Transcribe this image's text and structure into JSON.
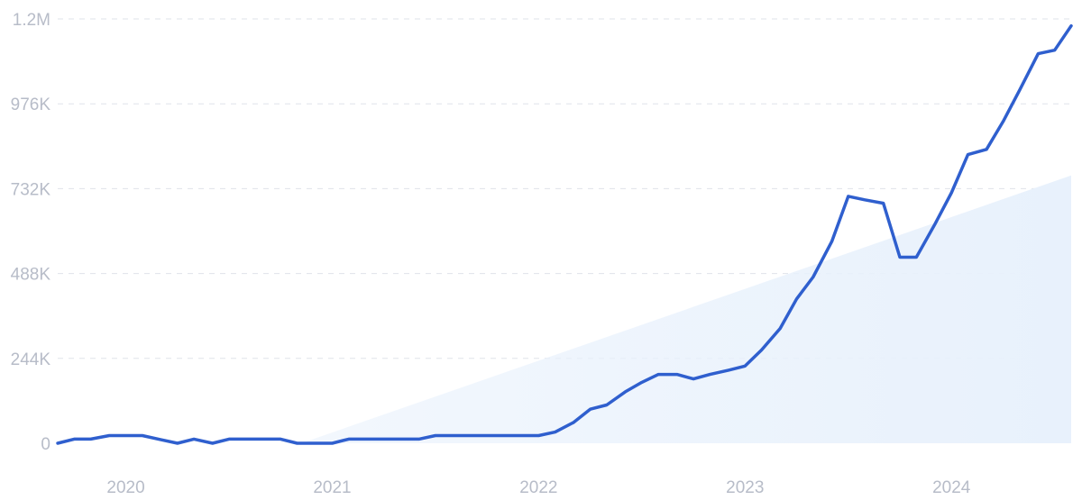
{
  "chart_data": {
    "type": "line",
    "title": "",
    "xlabel": "",
    "ylabel": "",
    "grid": true,
    "y_ticks": [
      {
        "value": 0,
        "label": "0"
      },
      {
        "value": 244000,
        "label": "244K"
      },
      {
        "value": 488000,
        "label": "488K"
      },
      {
        "value": 732000,
        "label": "732K"
      },
      {
        "value": 976000,
        "label": "976K"
      },
      {
        "value": 1220000,
        "label": "1.2M"
      }
    ],
    "x_ticks": [
      {
        "value": 2020.0,
        "label": "2020"
      },
      {
        "value": 2021.0,
        "label": "2021"
      },
      {
        "value": 2022.0,
        "label": "2022"
      },
      {
        "value": 2023.0,
        "label": "2023"
      },
      {
        "value": 2024.0,
        "label": "2024"
      }
    ],
    "xlim": [
      2019.67,
      2024.58
    ],
    "ylim": [
      0,
      1220000
    ],
    "colors": {
      "line": "#2f5fce",
      "trend_fill": "#e8f1fc"
    },
    "series": [
      {
        "x": [
          2019.67,
          2019.75,
          2019.83,
          2019.92,
          2020.0,
          2020.08,
          2020.17,
          2020.25,
          2020.33,
          2020.42,
          2020.5,
          2020.58,
          2020.67,
          2020.75,
          2020.83,
          2020.92,
          2021.0,
          2021.08,
          2021.17,
          2021.25,
          2021.33,
          2021.42,
          2021.5,
          2021.58,
          2021.67,
          2021.75,
          2021.83,
          2021.92,
          2022.0,
          2022.08,
          2022.17,
          2022.25,
          2022.33,
          2022.42,
          2022.5,
          2022.58,
          2022.67,
          2022.75,
          2022.83,
          2022.92,
          2023.0,
          2023.08,
          2023.17,
          2023.25,
          2023.33,
          2023.42,
          2023.5,
          2023.58,
          2023.67,
          2023.75,
          2023.83,
          2023.92,
          2024.0,
          2024.08,
          2024.17,
          2024.25,
          2024.33,
          2024.42,
          2024.5,
          2024.58
        ],
        "values": [
          0,
          12000,
          12000,
          22000,
          22000,
          22000,
          10000,
          0,
          12000,
          0,
          12000,
          12000,
          12000,
          12000,
          0,
          0,
          0,
          12000,
          12000,
          12000,
          12000,
          12000,
          22000,
          22000,
          22000,
          22000,
          22000,
          22000,
          22000,
          32000,
          60000,
          98000,
          110000,
          148000,
          175000,
          198000,
          198000,
          185000,
          198000,
          210000,
          222000,
          268000,
          330000,
          415000,
          478000,
          580000,
          710000,
          700000,
          690000,
          535000,
          535000,
          630000,
          720000,
          830000,
          845000,
          925000,
          1015000,
          1120000,
          1130000,
          1200000
        ]
      }
    ],
    "trend": {
      "start": {
        "x": 2020.85,
        "y": 0
      },
      "end": {
        "x": 2024.58,
        "y": 770000
      }
    }
  }
}
